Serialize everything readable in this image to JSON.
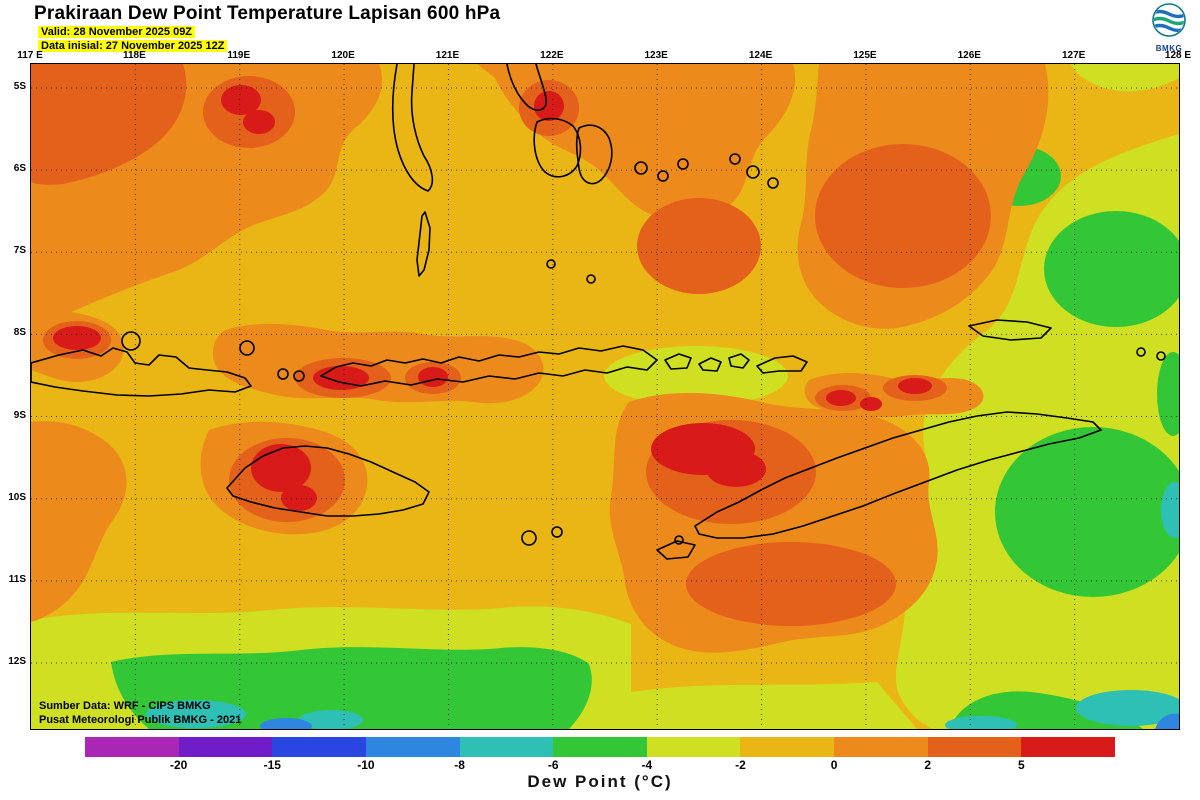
{
  "header": {
    "title": "Prakiraan Dew Point Temperature Lapisan 600 hPa",
    "valid_label": "Valid: 28 November 2025 09Z",
    "init_label": "Data inisial: 27 November 2025 12Z",
    "logo_text": "BMKG"
  },
  "axes": {
    "lon_labels": [
      "117 E",
      "118E",
      "119E",
      "120E",
      "121E",
      "122E",
      "123E",
      "124E",
      "125E",
      "126E",
      "127E",
      "128 E"
    ],
    "lat_labels": [
      "5S",
      "6S",
      "7S",
      "8S",
      "9S",
      "10S",
      "11S",
      "12S"
    ]
  },
  "legend": {
    "title": "Dew Point (°C)",
    "tick_labels": [
      "-20",
      "-15",
      "-10",
      "-8",
      "-6",
      "-4",
      "-2",
      "0",
      "2",
      "5"
    ],
    "colors": [
      "#aa26b4",
      "#6f1dc8",
      "#2a46e0",
      "#2e86e0",
      "#2ec0b4",
      "#33c636",
      "#cfe023",
      "#eab616",
      "#ec8a1c",
      "#e3611a",
      "#d81a18"
    ]
  },
  "footer": {
    "source_line1": "Sumber Data: WRF - CIPS BMKG",
    "source_line2": "Pusat Meteorologi Publik BMKG - 2021"
  }
}
